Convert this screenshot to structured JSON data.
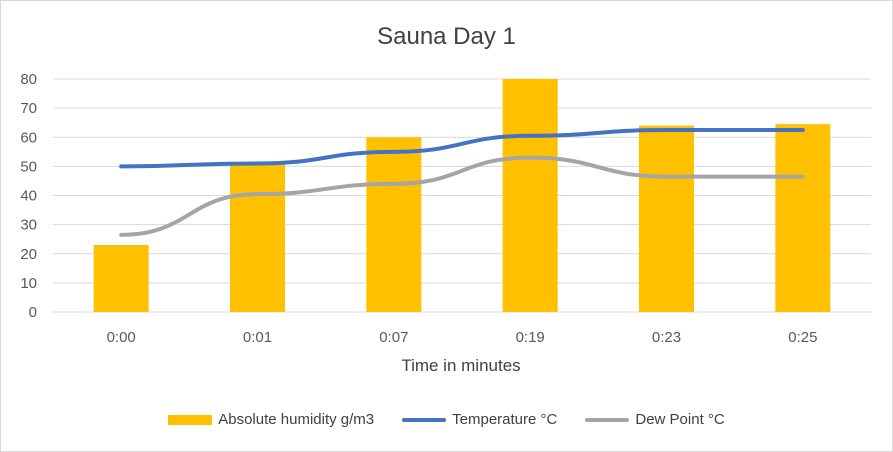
{
  "chart_data": {
    "type": "bar",
    "title": "Sauna Day 1",
    "xlabel": "Time in minutes",
    "ylabel": "",
    "categories": [
      "0:00",
      "0:01",
      "0:07",
      "0:19",
      "0:23",
      "0:25"
    ],
    "ylim": [
      0,
      80
    ],
    "yticks": [
      0,
      10,
      20,
      30,
      40,
      50,
      60,
      70,
      80
    ],
    "grid": true,
    "legend_position": "bottom",
    "series": [
      {
        "name": "Absolute humidity g/m3",
        "kind": "bar",
        "color": "#ffc000",
        "values": [
          23,
          51,
          60,
          80,
          64,
          64.5
        ]
      },
      {
        "name": "Temperature °C",
        "kind": "line",
        "color": "#4472c4",
        "values": [
          50,
          51,
          55,
          60.5,
          62.5,
          62.5
        ]
      },
      {
        "name": "Dew Point °C",
        "kind": "line",
        "color": "#a5a5a5",
        "values": [
          26.5,
          40.5,
          44,
          53,
          46.5,
          46.5
        ]
      }
    ]
  }
}
